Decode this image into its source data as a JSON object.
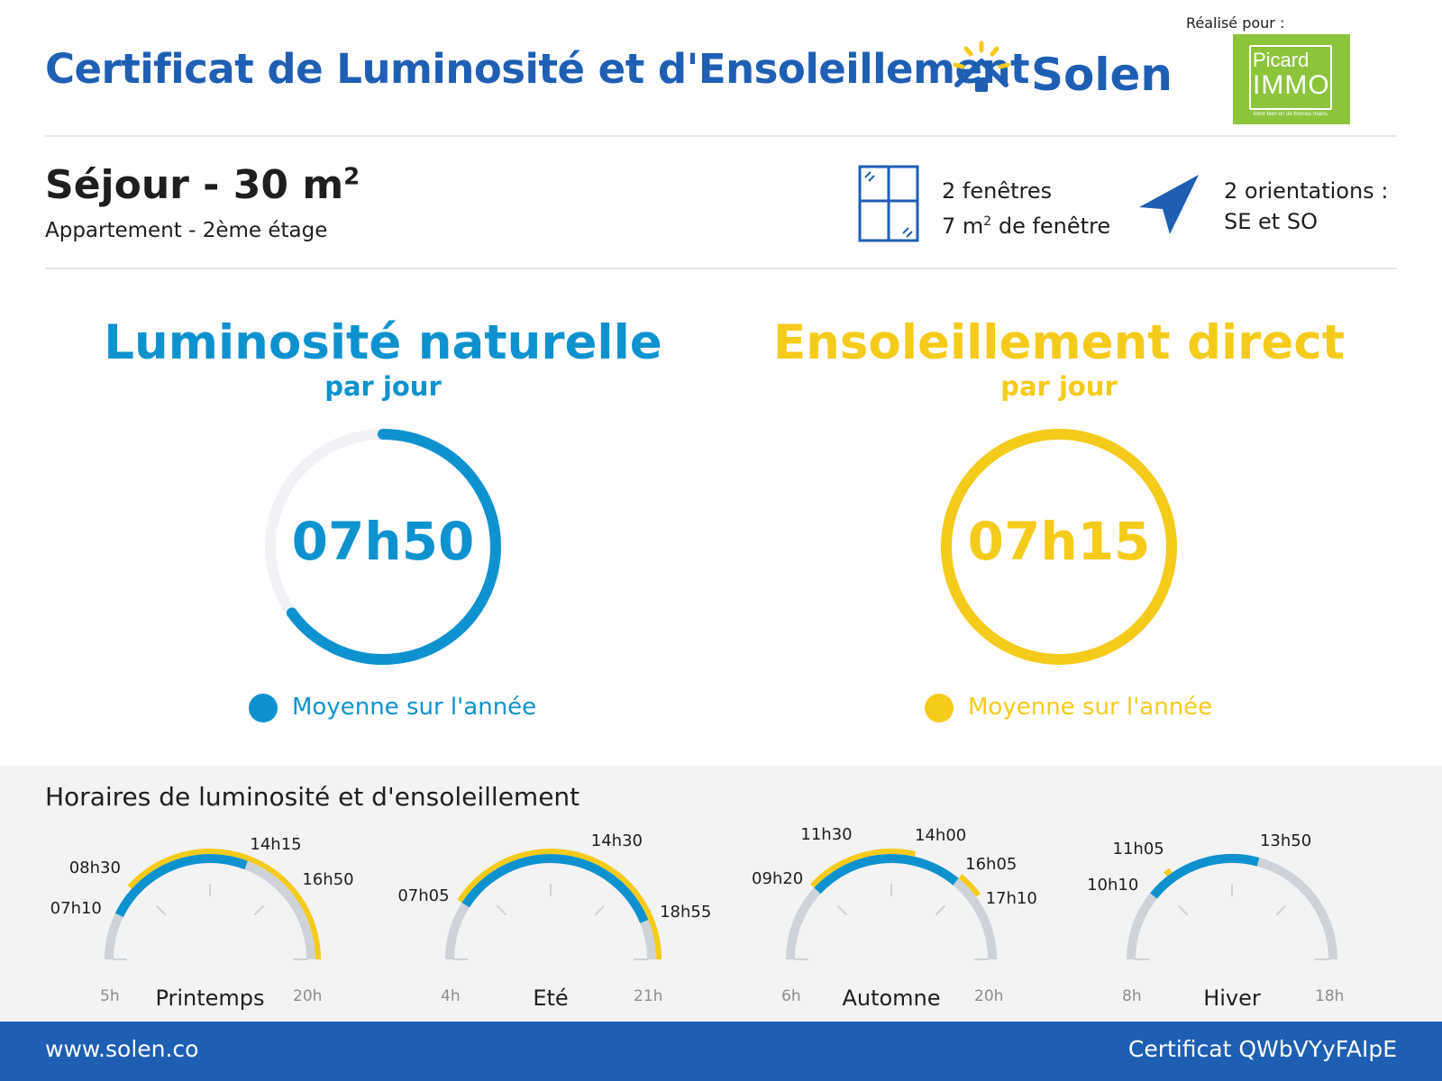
{
  "header": {
    "title": "Certificat de Luminosité et d'Ensoleillement",
    "brand_name": "Solen",
    "brand_color": "#1e5fb4",
    "realise_pour": "Réalisé pour :",
    "partner_line1": "Picard",
    "partner_line2": "IMMO",
    "partner_tagline": "Votre bien en de bonnes mains",
    "partner_color": "#8cc43c"
  },
  "room": {
    "title": "Séjour - 30 m",
    "title_sup": "2",
    "subtitle": "Appartement - 2ème étage",
    "windows_line1": "2 fenêtres",
    "windows_line2_pre": "7 m",
    "windows_line2_sup": "2",
    "windows_line2_post": " de fenêtre",
    "orientation_line1": "2 orientations :",
    "orientation_line2": "SE et SO",
    "window_icon": "window-icon",
    "orientation_icon": "navigation-arrow-icon"
  },
  "luminosite": {
    "title": "Luminosité naturelle",
    "subtitle": "par jour",
    "value": "07h50",
    "fraction": 0.65,
    "legend": "Moyenne sur l'année",
    "color": "#0e92cf"
  },
  "ensoleillement": {
    "title": "Ensoleillement direct",
    "subtitle": "par jour",
    "value": "07h15",
    "fraction": 1.0,
    "legend": "Moyenne sur l'année",
    "color": "#f5cb1b"
  },
  "horaires": {
    "title": "Horaires de luminosité et d'ensoleillement",
    "seasons": [
      {
        "name": "Printemps",
        "start_label": "5h",
        "end_label": "20h",
        "start": 5,
        "end": 20,
        "lum_start": "07h10",
        "lum_end": "14h15",
        "lum_start_h": 7.1667,
        "lum_end_h": 14.25,
        "sun_start": "08h30",
        "sun_end": "16h50",
        "sun_start_h": 8.5,
        "sun_end_h": 16.8333,
        "sun_to_end": true
      },
      {
        "name": "Eté",
        "start_label": "4h",
        "end_label": "21h",
        "start": 4,
        "end": 21,
        "lum_start": "07h05",
        "lum_end": "18h55",
        "lum_start_h": 7.0833,
        "lum_end_h": 18.9167,
        "sun_start": "07h05",
        "sun_end": "14h30",
        "sun_start_h": 7.0833,
        "sun_end_h": 14.5,
        "sun_to_end": true
      },
      {
        "name": "Automne",
        "start_label": "6h",
        "end_label": "20h",
        "start": 6,
        "end": 20,
        "lum_start": "09h20",
        "lum_end": "16h05",
        "lum_start_h": 9.3333,
        "lum_end_h": 16.0833,
        "sun_start": "11h30",
        "sun_end": "14h00",
        "sun_start_h": 11.5,
        "sun_end_h": 14.0,
        "extra_label": "17h10",
        "extra_h": 17.1667
      },
      {
        "name": "Hiver",
        "start_label": "8h",
        "end_label": "18h",
        "start": 8,
        "end": 18,
        "lum_start": "10h10",
        "lum_end": "13h50",
        "lum_start_h": 10.1667,
        "lum_end_h": 13.8333,
        "sun_start": "11h05",
        "sun_start_h": 11.0833
      }
    ]
  },
  "footer": {
    "url": "www.solen.co",
    "certificate": "Certificat QWbVYyFAIpE"
  }
}
